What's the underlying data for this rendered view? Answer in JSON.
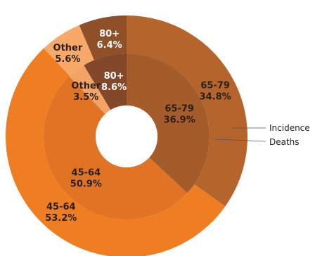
{
  "chart_data": {
    "type": "pie",
    "rings": [
      {
        "name": "Incidence",
        "slices": [
          {
            "label": "65-79",
            "value": 34.8,
            "color": "#b5642b"
          },
          {
            "label": "45-64",
            "value": 53.2,
            "color": "#ef7d22"
          },
          {
            "label": "Other",
            "value": 5.6,
            "color": "#f7a96a"
          },
          {
            "label": "80+",
            "value": 6.4,
            "color": "#8f4f27"
          }
        ]
      },
      {
        "name": "Deaths",
        "slices": [
          {
            "label": "65-79",
            "value": 36.9,
            "color": "#a35c2a"
          },
          {
            "label": "45-64",
            "value": 50.9,
            "color": "#e07324"
          },
          {
            "label": "Other",
            "value": 3.5,
            "color": "#f3a363"
          },
          {
            "label": "80+",
            "value": 8.6,
            "color": "#83482a"
          }
        ]
      }
    ],
    "legend": [
      "Incidence",
      "Deaths"
    ],
    "value_suffix": "%"
  }
}
